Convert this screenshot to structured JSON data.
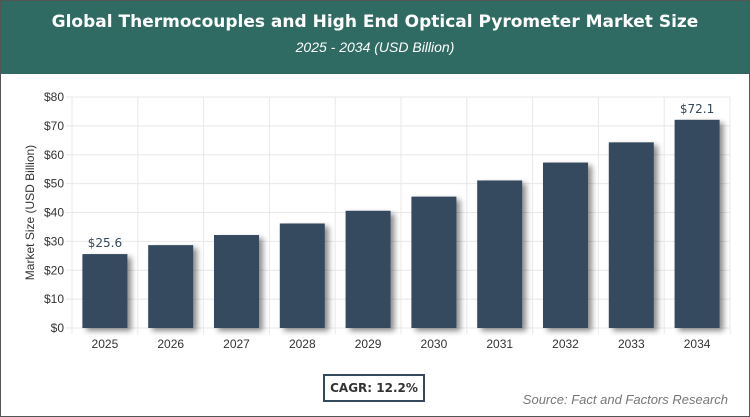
{
  "header": {
    "title": "Global Thermocouples and High End Optical Pyrometer Market Size",
    "subtitle": "2025 - 2034 (USD Billion)"
  },
  "chart_data": {
    "type": "bar",
    "title": "Global Thermocouples and High End Optical Pyrometer Market Size",
    "subtitle": "2025 - 2034 (USD Billion)",
    "categories": [
      "2025",
      "2026",
      "2027",
      "2028",
      "2029",
      "2030",
      "2031",
      "2032",
      "2033",
      "2034"
    ],
    "values": [
      25.6,
      28.7,
      32.2,
      36.2,
      40.6,
      45.5,
      51.1,
      57.3,
      64.3,
      72.1
    ],
    "data_labels": {
      "0": "$25.6",
      "9": "$72.1"
    },
    "ylabel": "Market Size (USD Billion)",
    "xlabel": "",
    "ylim": [
      0,
      80
    ],
    "yticks": [
      "$0",
      "$10",
      "$20",
      "$30",
      "$40",
      "$50",
      "$60",
      "$70",
      "$80"
    ],
    "grid": true,
    "bar_color": "#34495e"
  },
  "footer": {
    "cagr": "CAGR: 12.2%",
    "source": "Source: Fact and Factors Research"
  }
}
